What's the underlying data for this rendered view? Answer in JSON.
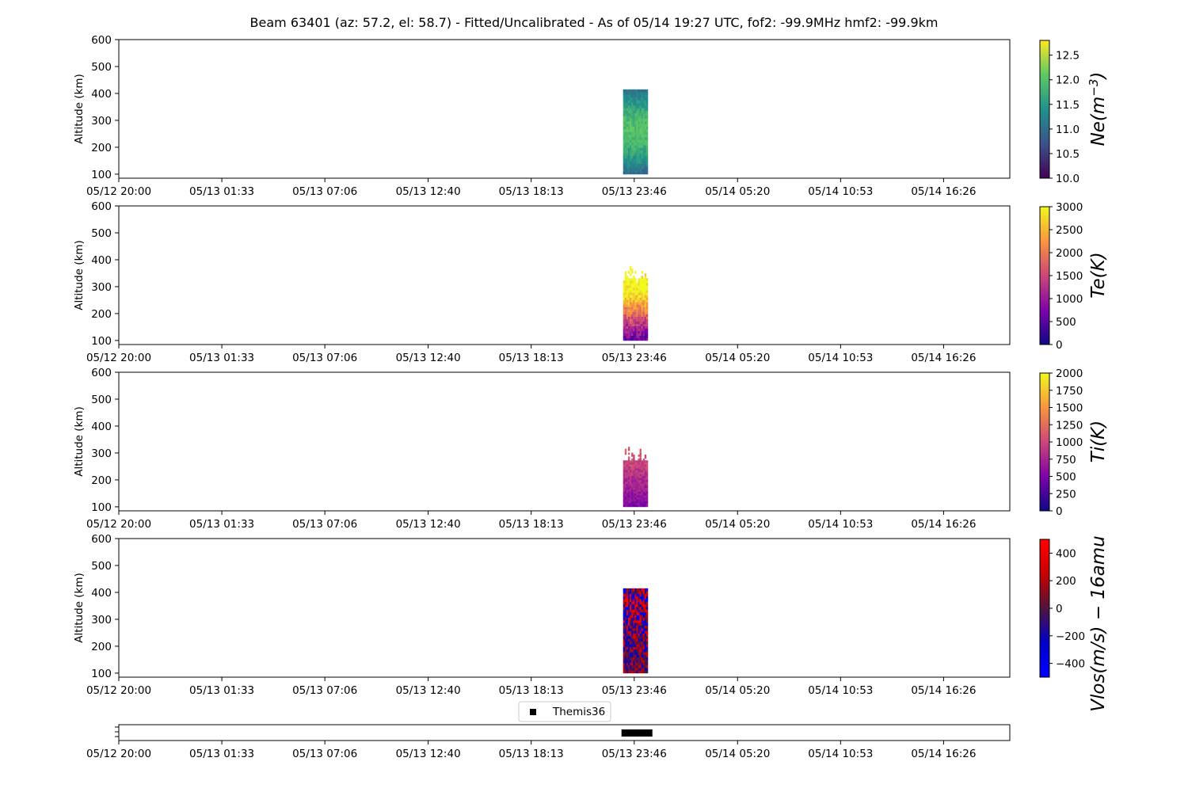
{
  "figure": {
    "title": "Beam 63401 (az: 57.2, el: 58.7) - Fitted/Uncalibrated - As of 05/14 19:27 UTC, fof2: -99.9MHz  hmf2: -99.9km"
  },
  "chart_data": [
    {
      "type": "heatmap",
      "ylabel": "Altitude (km)",
      "ylim": [
        85,
        600
      ],
      "yticks": [
        100,
        200,
        300,
        400,
        500,
        600
      ],
      "xticks": [
        "05/12 20:00",
        "05/13 01:33",
        "05/13 07:06",
        "05/13 12:40",
        "05/13 18:13",
        "05/13 23:46",
        "05/14 05:20",
        "05/14 10:53",
        "05/14 16:26"
      ],
      "data_time_span": [
        "05/13 23:10",
        "05/14 00:30"
      ],
      "data_alt_span": [
        100,
        415
      ],
      "colorbar": {
        "label": "Ne(m⁻³)",
        "label_base": "Ne(m",
        "label_exp": "−3",
        "label_end": ")",
        "range": [
          10.0,
          12.8
        ],
        "ticks": [
          "10.0",
          "10.5",
          "11.0",
          "11.5",
          "12.0",
          "12.5"
        ],
        "colormap": "viridis"
      }
    },
    {
      "type": "heatmap",
      "ylabel": "Altitude (km)",
      "ylim": [
        85,
        600
      ],
      "yticks": [
        100,
        200,
        300,
        400,
        500,
        600
      ],
      "xticks": [
        "05/12 20:00",
        "05/13 01:33",
        "05/13 07:06",
        "05/13 12:40",
        "05/13 18:13",
        "05/13 23:46",
        "05/14 05:20",
        "05/14 10:53",
        "05/14 16:26"
      ],
      "data_time_span": [
        "05/13 23:10",
        "05/14 00:30"
      ],
      "data_alt_span": [
        100,
        385
      ],
      "colorbar": {
        "label": "Te(K)",
        "range": [
          0,
          3000
        ],
        "ticks": [
          "0",
          "500",
          "1000",
          "1500",
          "2000",
          "2500",
          "3000"
        ],
        "colormap": "plasma"
      }
    },
    {
      "type": "heatmap",
      "ylabel": "Altitude (km)",
      "ylim": [
        85,
        600
      ],
      "yticks": [
        100,
        200,
        300,
        400,
        500,
        600
      ],
      "xticks": [
        "05/12 20:00",
        "05/13 01:33",
        "05/13 07:06",
        "05/13 12:40",
        "05/13 18:13",
        "05/13 23:46",
        "05/14 05:20",
        "05/14 10:53",
        "05/14 16:26"
      ],
      "data_time_span": [
        "05/13 23:10",
        "05/14 00:30"
      ],
      "data_alt_span": [
        100,
        330
      ],
      "colorbar": {
        "label": "Ti(K)",
        "range": [
          0,
          2000
        ],
        "ticks": [
          "0",
          "250",
          "500",
          "750",
          "1000",
          "1250",
          "1500",
          "1750",
          "2000"
        ],
        "colormap": "plasma"
      }
    },
    {
      "type": "heatmap",
      "ylabel": "Altitude (km)",
      "ylim": [
        85,
        600
      ],
      "yticks": [
        100,
        200,
        300,
        400,
        500,
        600
      ],
      "xticks": [
        "05/12 20:00",
        "05/13 01:33",
        "05/13 07:06",
        "05/13 12:40",
        "05/13 18:13",
        "05/13 23:46",
        "05/14 05:20",
        "05/14 10:53",
        "05/14 16:26"
      ],
      "data_time_span": [
        "05/13 23:10",
        "05/14 00:30"
      ],
      "data_alt_span": [
        100,
        415
      ],
      "colorbar": {
        "label": "Vlos(m/s) − 16amu",
        "range": [
          -500,
          500
        ],
        "ticks": [
          "−400",
          "−200",
          "0",
          "200",
          "400"
        ],
        "colormap": "seismic"
      }
    },
    {
      "type": "scatter",
      "xticks": [
        "05/12 20:00",
        "05/13 01:33",
        "05/13 07:06",
        "05/13 12:40",
        "05/13 18:13",
        "05/13 23:46",
        "05/14 05:20",
        "05/14 10:53",
        "05/14 16:26"
      ],
      "series": [
        {
          "name": "Themis36",
          "marker": "square",
          "color": "#000000",
          "time_span": [
            "05/13 23:10",
            "05/14 00:30"
          ]
        }
      ],
      "legend": "top-center"
    }
  ]
}
